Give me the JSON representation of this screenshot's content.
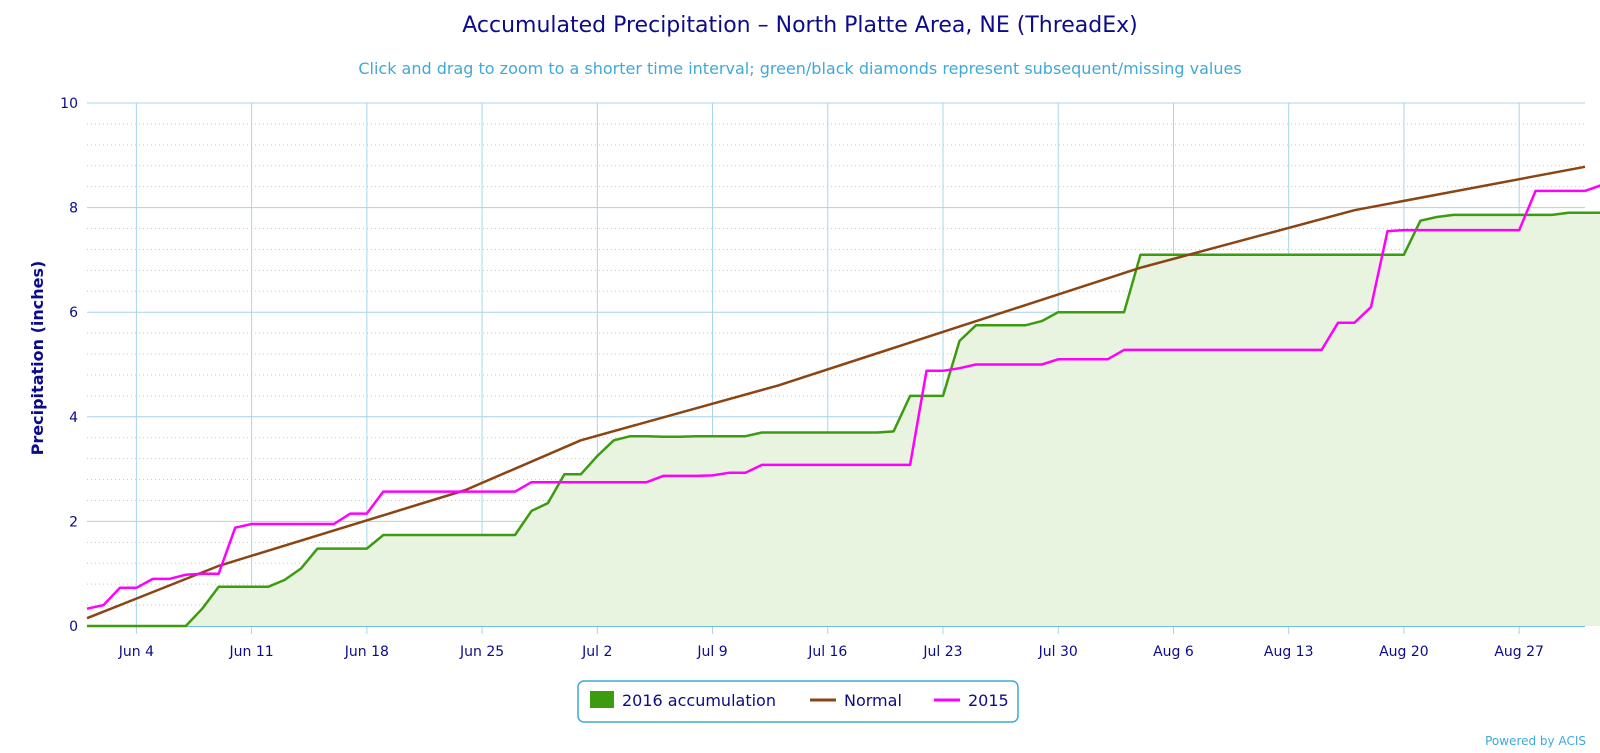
{
  "chart_data": {
    "type": "line",
    "title": "Accumulated Precipitation – North Platte Area, NE (ThreadEx)",
    "subtitle": "Click and drag to zoom to a shorter time interval; green/black diamonds represent subsequent/missing values",
    "ylabel": "Precipitation (inches)",
    "xlabel": "",
    "ylim": [
      0,
      10
    ],
    "yticks": [
      "0",
      "2",
      "4",
      "6",
      "8",
      "10"
    ],
    "xticks": [
      "Jun 4",
      "Jun 11",
      "Jun 18",
      "Jun 25",
      "Jul 2",
      "Jul 9",
      "Jul 16",
      "Jul 23",
      "Jul 30",
      "Aug 6",
      "Aug 13",
      "Aug 20",
      "Aug 27"
    ],
    "grid": true,
    "legend_position": "bottom-center",
    "x_start": "2016-06-01",
    "x_end": "2016-08-31",
    "series": [
      {
        "name": "2016 accumulation",
        "style": "area",
        "color": "#3d9b0f",
        "values": [
          0,
          0,
          0,
          0,
          0,
          0,
          0,
          0.33,
          0.75,
          0.75,
          0.75,
          0.75,
          0.88,
          1.1,
          1.48,
          1.48,
          1.48,
          1.48,
          1.74,
          1.74,
          1.74,
          1.74,
          1.74,
          1.74,
          1.74,
          1.74,
          1.74,
          2.2,
          2.35,
          2.9,
          2.9,
          3.25,
          3.55,
          3.63,
          3.63,
          3.62,
          3.62,
          3.63,
          3.63,
          3.63,
          3.63,
          3.7,
          3.7,
          3.7,
          3.7,
          3.7,
          3.7,
          3.7,
          3.7,
          3.72,
          4.4,
          4.4,
          4.4,
          5.45,
          5.75,
          5.75,
          5.75,
          5.75,
          5.83,
          6.0,
          6.0,
          6.0,
          6.0,
          6.0,
          7.1,
          7.1,
          7.1,
          7.1,
          7.1,
          7.1,
          7.1,
          7.1,
          7.1,
          7.1,
          7.1,
          7.1,
          7.1,
          7.1,
          7.1,
          7.1,
          7.1,
          7.75,
          7.82,
          7.86,
          7.86,
          7.86,
          7.86,
          7.86,
          7.86,
          7.86,
          7.9,
          7.9,
          7.9,
          7.9,
          7.9,
          7.9,
          7.9,
          7.9,
          7.9,
          7.9,
          7.95,
          7.95,
          7.95,
          7.96,
          7.98,
          7.98
        ]
      },
      {
        "name": "Normal",
        "style": "line",
        "color": "#8b4513",
        "x": [
          "2016-06-01",
          "2016-06-09",
          "2016-06-24",
          "2016-07-01",
          "2016-07-13",
          "2016-08-04",
          "2016-08-17",
          "2016-08-31"
        ],
        "values": [
          0.15,
          1.15,
          2.6,
          3.55,
          4.6,
          6.85,
          7.95,
          8.78
        ]
      },
      {
        "name": "2015",
        "style": "line",
        "color": "#ff00ff",
        "values": [
          0.33,
          0.4,
          0.73,
          0.73,
          0.9,
          0.9,
          0.98,
          1.0,
          1.0,
          1.88,
          1.95,
          1.95,
          1.95,
          1.95,
          1.95,
          1.95,
          2.15,
          2.15,
          2.57,
          2.57,
          2.57,
          2.57,
          2.57,
          2.57,
          2.57,
          2.57,
          2.57,
          2.75,
          2.75,
          2.75,
          2.75,
          2.75,
          2.75,
          2.75,
          2.75,
          2.87,
          2.87,
          2.87,
          2.88,
          2.93,
          2.93,
          3.08,
          3.08,
          3.08,
          3.08,
          3.08,
          3.08,
          3.08,
          3.08,
          3.08,
          3.08,
          4.88,
          4.88,
          4.93,
          5.0,
          5.0,
          5.0,
          5.0,
          5.0,
          5.1,
          5.1,
          5.1,
          5.1,
          5.28,
          5.28,
          5.28,
          5.28,
          5.28,
          5.28,
          5.28,
          5.28,
          5.28,
          5.28,
          5.28,
          5.28,
          5.28,
          5.8,
          5.8,
          6.1,
          7.55,
          7.57,
          7.57,
          7.57,
          7.57,
          7.57,
          7.57,
          7.57,
          7.57,
          8.32,
          8.32,
          8.32,
          8.32,
          8.43,
          8.43,
          8.47,
          8.47,
          8.47,
          8.47,
          8.47,
          8.47,
          8.47,
          8.47,
          8.47,
          8.47,
          8.47,
          8.47,
          8.47,
          8.47,
          8.47,
          8.47,
          8.47,
          8.47
        ]
      }
    ]
  },
  "legend": {
    "items": [
      "2016 accumulation",
      "Normal",
      "2015"
    ]
  },
  "credit": "Powered by ACIS",
  "colors": {
    "title": "#0c0c8a",
    "subtitle": "#3fa9d8",
    "grid_major": "#a8d4ea",
    "grid_minor": "#c8c8c8",
    "area_fill": "#e8f3e0"
  }
}
